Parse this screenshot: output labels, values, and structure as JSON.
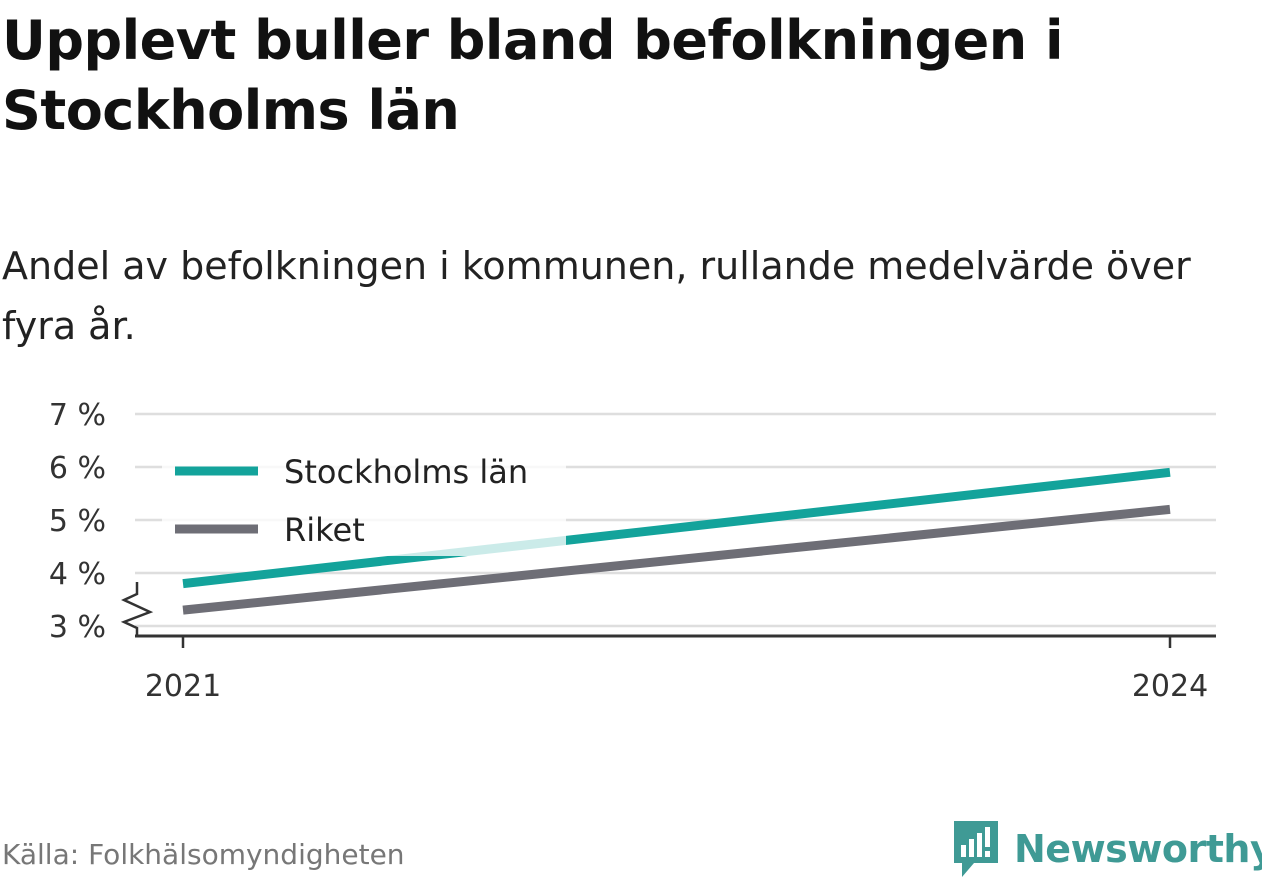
{
  "title": "Upplevt buller bland befolkningen i Stockholms län",
  "subtitle": "Andel av befolkningen i kommunen, rullande medelvärde över fyra år.",
  "source": "Källa: Folkhälsomyndigheten",
  "brand": {
    "name": "Newsworthy",
    "icon": "newsworthy-logo-icon",
    "color": "#3f9a95"
  },
  "chart_data": {
    "type": "line",
    "x": [
      2021,
      2024
    ],
    "xticks": [
      "2021",
      "2024"
    ],
    "xlim": [
      2021,
      2024
    ],
    "ylim": [
      3,
      7
    ],
    "yticks": [
      3,
      4,
      5,
      6,
      7
    ],
    "ytick_labels": [
      "3 %",
      "4 %",
      "5 %",
      "6 %",
      "7 %"
    ],
    "y_axis_break": true,
    "grid": true,
    "legend_position": "top-left",
    "series": [
      {
        "name": "Stockholms län",
        "color": "#13a39b",
        "values": [
          3.8,
          5.9
        ]
      },
      {
        "name": "Riket",
        "color": "#6e6e76",
        "values": [
          3.3,
          5.2
        ]
      }
    ]
  }
}
